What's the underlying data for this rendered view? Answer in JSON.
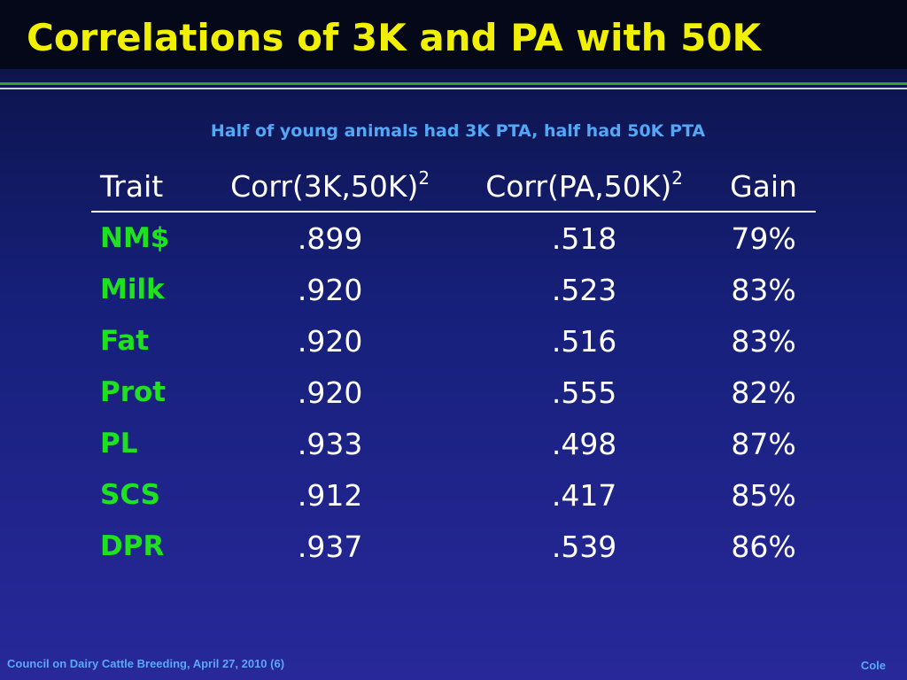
{
  "slide": {
    "title": "Correlations of 3K and PA with 50K",
    "subtitle": "Half of young animals had 3K PTA, half had 50K PTA"
  },
  "table": {
    "headers": {
      "trait": "Trait",
      "corr_3k": "Corr(3K,50K)",
      "corr_3k_sup": "2",
      "corr_pa": "Corr(PA,50K)",
      "corr_pa_sup": "2",
      "gain": "Gain"
    },
    "rows": [
      {
        "trait": "NM$",
        "corr_3k": ".899",
        "corr_pa": ".518",
        "gain": "79%"
      },
      {
        "trait": "Milk",
        "corr_3k": ".920",
        "corr_pa": ".523",
        "gain": "83%"
      },
      {
        "trait": "Fat",
        "corr_3k": ".920",
        "corr_pa": ".516",
        "gain": "83%"
      },
      {
        "trait": "Prot",
        "corr_3k": ".920",
        "corr_pa": ".555",
        "gain": "82%"
      },
      {
        "trait": "PL",
        "corr_3k": ".933",
        "corr_pa": ".498",
        "gain": "87%"
      },
      {
        "trait": "SCS",
        "corr_3k": ".912",
        "corr_pa": ".417",
        "gain": "85%"
      },
      {
        "trait": "DPR",
        "corr_3k": ".937",
        "corr_pa": ".539",
        "gain": "86%"
      }
    ]
  },
  "footer": {
    "left": "Council on Dairy Cattle Breeding, April 27, 2010 (6)",
    "right": "Cole"
  },
  "colors": {
    "title": "#f0f000",
    "subtitle": "#54a7f5",
    "trait_names": "#1ee21e",
    "values": "#ffffff",
    "footer": "#5aa8f7",
    "title_bar": "#040818",
    "background_top": "#0b1140",
    "background_bottom": "#28289a",
    "rule_green": "#2aa82a"
  }
}
